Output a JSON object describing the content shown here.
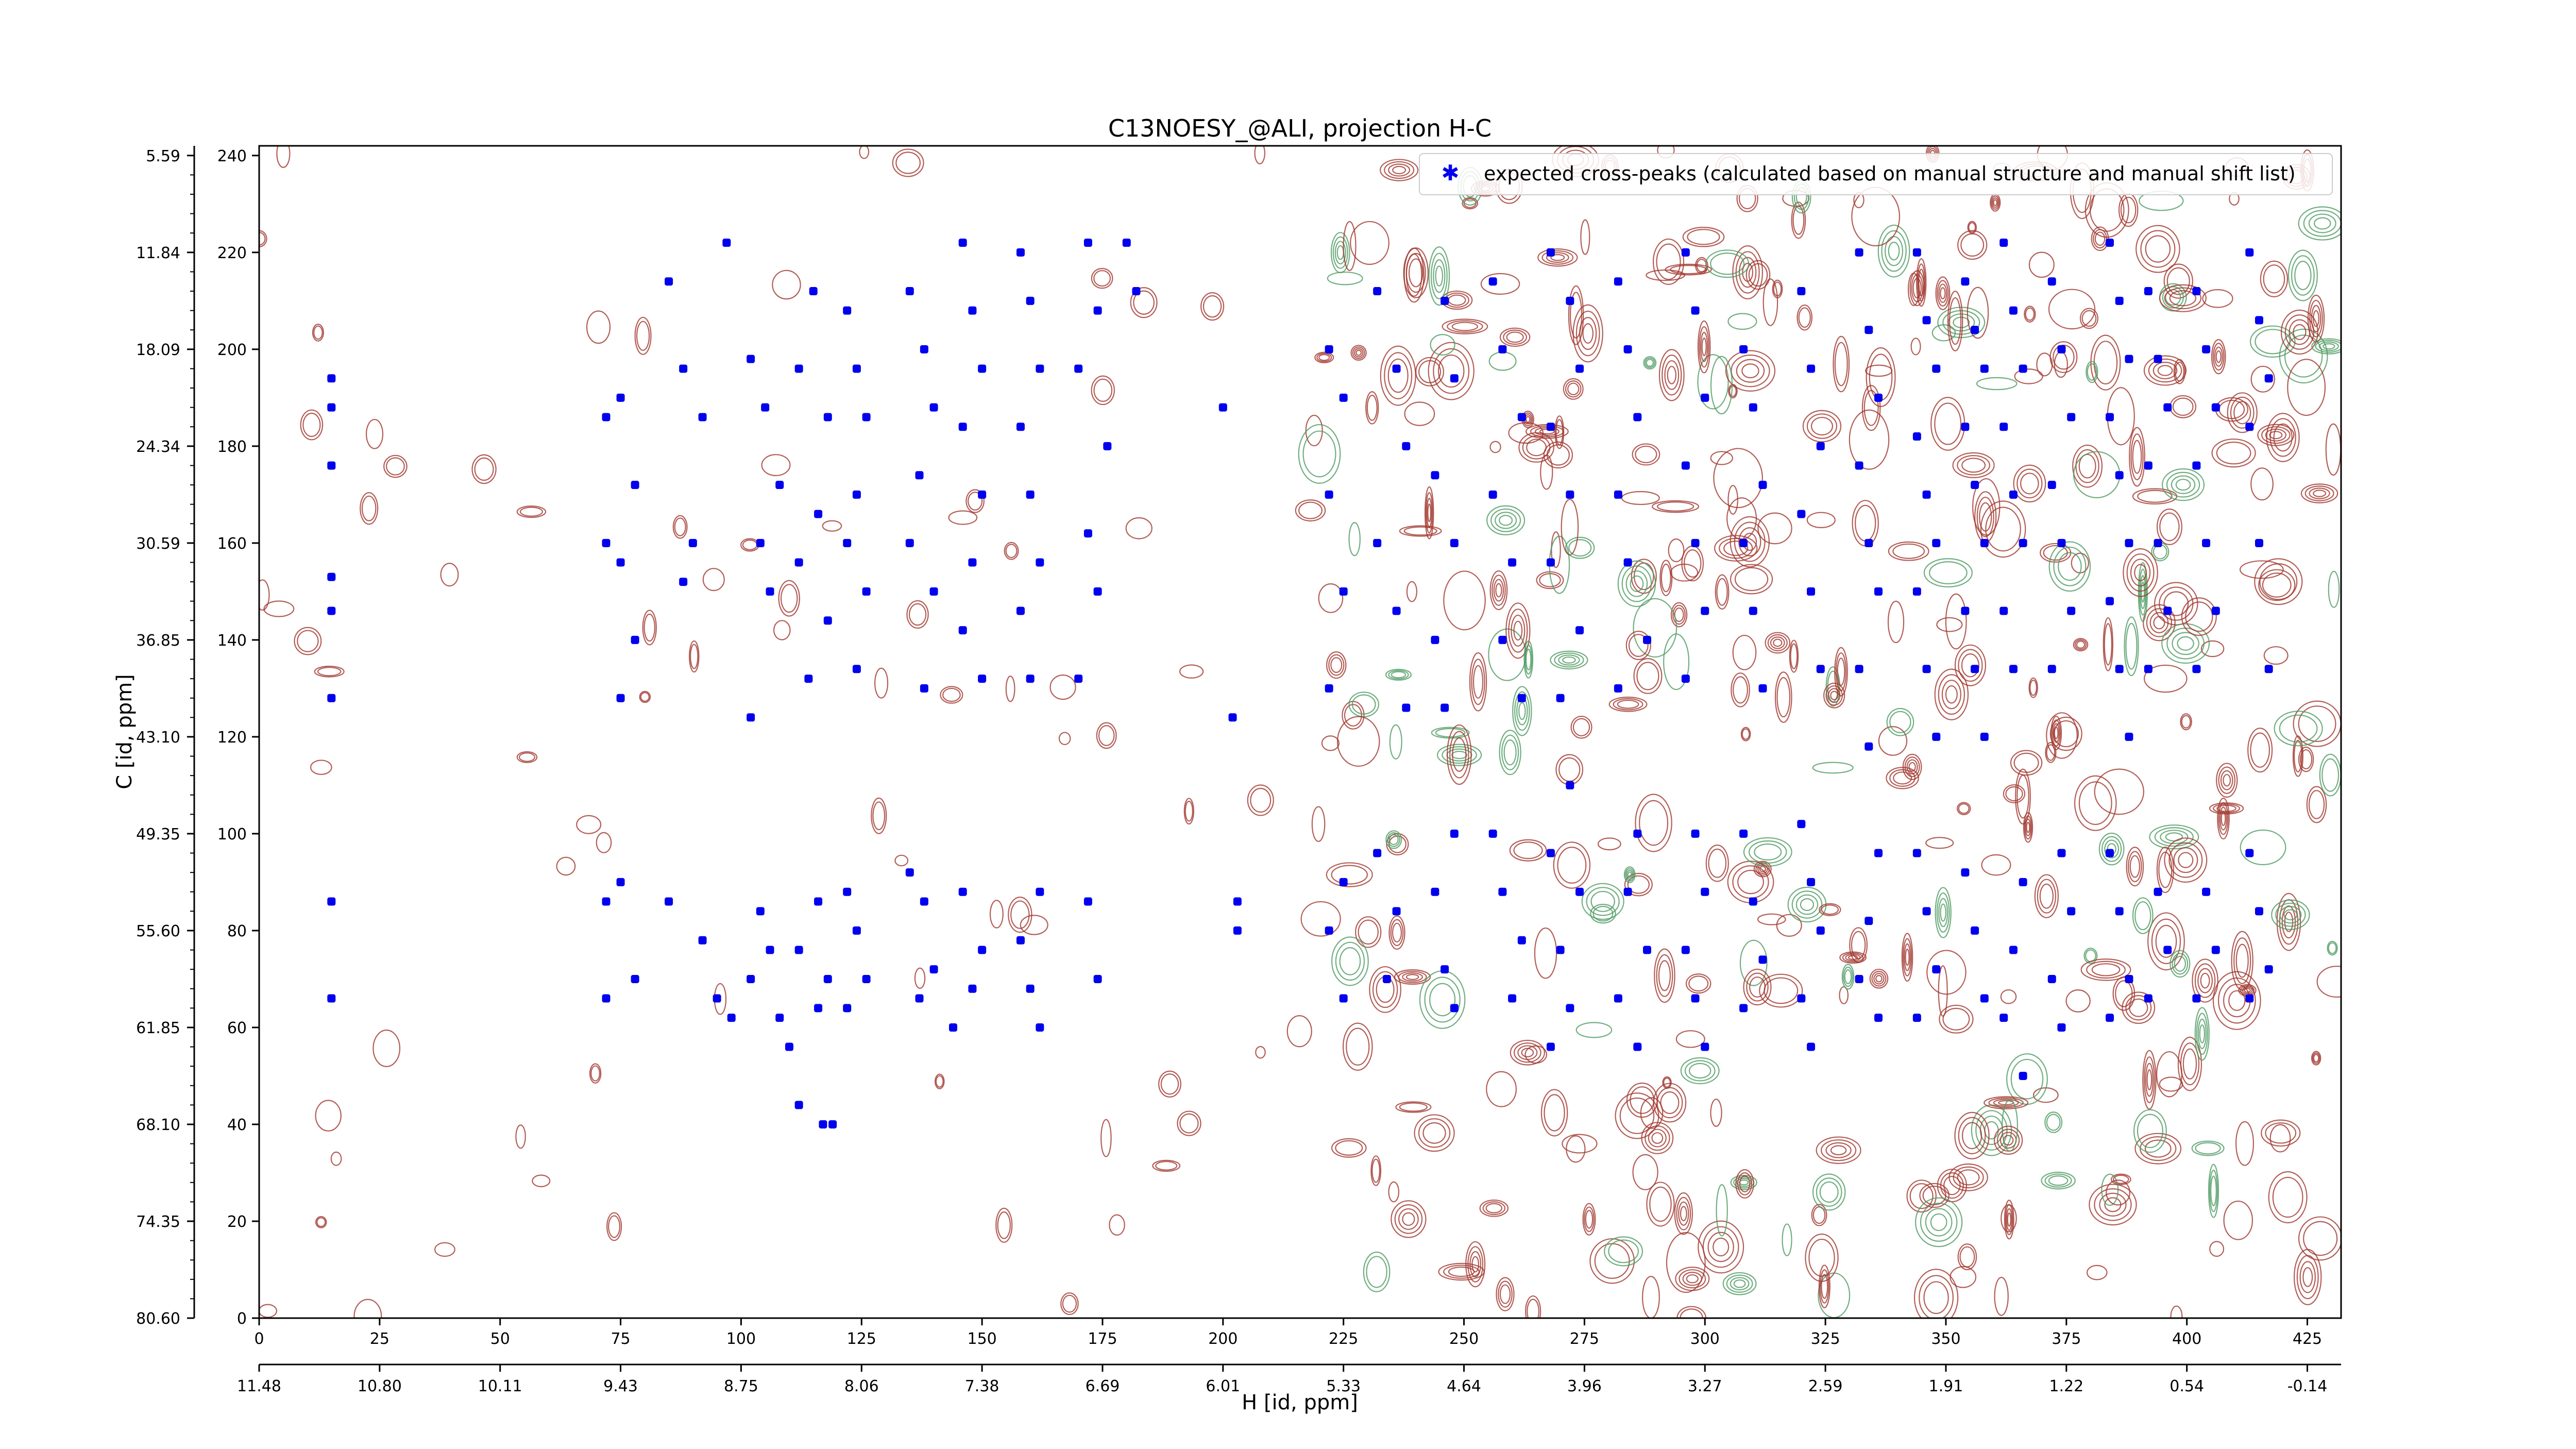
{
  "chart_data": {
    "type": "scatter",
    "title": "C13NOESY_@ALI, projection H-C",
    "xlabel": "H [id, ppm]",
    "ylabel": "C [id, ppm]",
    "xlim": [
      0,
      432
    ],
    "ylim": [
      0,
      242
    ],
    "x_ticks": [
      0,
      25,
      50,
      75,
      100,
      125,
      150,
      175,
      200,
      225,
      250,
      275,
      300,
      325,
      350,
      375,
      400,
      425
    ],
    "x_ppm_ticks": [
      "11.48",
      "10.80",
      "10.11",
      "9.43",
      "8.75",
      "8.06",
      "7.38",
      "6.69",
      "6.01",
      "5.33",
      "4.64",
      "3.96",
      "3.27",
      "2.59",
      "1.91",
      "1.22",
      "0.54",
      "-0.14"
    ],
    "y_ticks": [
      0,
      20,
      40,
      60,
      80,
      100,
      120,
      140,
      160,
      180,
      200,
      220,
      240
    ],
    "y_ppm_ticks": [
      "80.60",
      "74.35",
      "68.10",
      "61.85",
      "55.60",
      "49.35",
      "43.10",
      "36.85",
      "30.59",
      "24.34",
      "18.09",
      "11.84",
      "5.59"
    ],
    "legend": {
      "position": "top-right",
      "entries": [
        "expected cross-peaks (calculated based on manual structure and manual shift list)"
      ]
    },
    "colors": {
      "peaks": "#0000ee",
      "contour_positive": "#a0362d",
      "contour_negative": "#4e9a61"
    },
    "series": [
      {
        "name": "expected cross-peaks (calculated based on manual structure and manual shift list)",
        "points": [
          [
            15,
            194
          ],
          [
            15,
            188
          ],
          [
            15,
            176
          ],
          [
            15,
            153
          ],
          [
            15,
            146
          ],
          [
            15,
            128
          ],
          [
            15,
            86
          ],
          [
            15,
            66
          ],
          [
            72,
            186
          ],
          [
            75,
            190
          ],
          [
            78,
            172
          ],
          [
            72,
            160
          ],
          [
            75,
            156
          ],
          [
            78,
            140
          ],
          [
            75,
            128
          ],
          [
            72,
            86
          ],
          [
            75,
            90
          ],
          [
            78,
            70
          ],
          [
            72,
            66
          ],
          [
            85,
            214
          ],
          [
            88,
            196
          ],
          [
            92,
            186
          ],
          [
            90,
            160
          ],
          [
            88,
            152
          ],
          [
            85,
            86
          ],
          [
            92,
            78
          ],
          [
            95,
            66
          ],
          [
            98,
            62
          ],
          [
            97,
            222
          ],
          [
            102,
            198
          ],
          [
            105,
            188
          ],
          [
            108,
            172
          ],
          [
            104,
            160
          ],
          [
            106,
            150
          ],
          [
            102,
            124
          ],
          [
            104,
            84
          ],
          [
            106,
            76
          ],
          [
            102,
            70
          ],
          [
            108,
            62
          ],
          [
            115,
            212
          ],
          [
            112,
            196
          ],
          [
            118,
            186
          ],
          [
            116,
            166
          ],
          [
            112,
            156
          ],
          [
            118,
            144
          ],
          [
            114,
            132
          ],
          [
            116,
            86
          ],
          [
            112,
            76
          ],
          [
            118,
            70
          ],
          [
            116,
            64
          ],
          [
            110,
            56
          ],
          [
            112,
            44
          ],
          [
            122,
            208
          ],
          [
            124,
            196
          ],
          [
            126,
            186
          ],
          [
            124,
            170
          ],
          [
            122,
            160
          ],
          [
            126,
            150
          ],
          [
            124,
            134
          ],
          [
            122,
            88
          ],
          [
            124,
            80
          ],
          [
            126,
            70
          ],
          [
            122,
            64
          ],
          [
            117,
            40
          ],
          [
            119,
            40
          ],
          [
            135,
            212
          ],
          [
            138,
            200
          ],
          [
            140,
            188
          ],
          [
            137,
            174
          ],
          [
            135,
            160
          ],
          [
            140,
            150
          ],
          [
            138,
            130
          ],
          [
            135,
            92
          ],
          [
            138,
            86
          ],
          [
            140,
            72
          ],
          [
            137,
            66
          ],
          [
            146,
            222
          ],
          [
            148,
            208
          ],
          [
            150,
            196
          ],
          [
            146,
            184
          ],
          [
            150,
            170
          ],
          [
            148,
            156
          ],
          [
            146,
            142
          ],
          [
            150,
            132
          ],
          [
            146,
            88
          ],
          [
            150,
            76
          ],
          [
            148,
            68
          ],
          [
            144,
            60
          ],
          [
            158,
            220
          ],
          [
            160,
            210
          ],
          [
            162,
            196
          ],
          [
            158,
            184
          ],
          [
            160,
            170
          ],
          [
            162,
            156
          ],
          [
            158,
            146
          ],
          [
            160,
            132
          ],
          [
            162,
            88
          ],
          [
            158,
            78
          ],
          [
            160,
            68
          ],
          [
            162,
            60
          ],
          [
            172,
            222
          ],
          [
            174,
            208
          ],
          [
            170,
            196
          ],
          [
            176,
            180
          ],
          [
            172,
            162
          ],
          [
            174,
            150
          ],
          [
            170,
            132
          ],
          [
            172,
            86
          ],
          [
            174,
            70
          ],
          [
            180,
            222
          ],
          [
            182,
            212
          ],
          [
            203,
            86
          ],
          [
            203,
            80
          ],
          [
            200,
            188
          ],
          [
            202,
            124
          ],
          [
            222,
            200
          ],
          [
            225,
            190
          ],
          [
            222,
            170
          ],
          [
            225,
            150
          ],
          [
            222,
            130
          ],
          [
            225,
            90
          ],
          [
            222,
            80
          ],
          [
            225,
            66
          ],
          [
            232,
            212
          ],
          [
            236,
            196
          ],
          [
            238,
            180
          ],
          [
            232,
            160
          ],
          [
            236,
            146
          ],
          [
            238,
            126
          ],
          [
            232,
            96
          ],
          [
            236,
            84
          ],
          [
            234,
            70
          ],
          [
            246,
            210
          ],
          [
            248,
            194
          ],
          [
            244,
            174
          ],
          [
            248,
            160
          ],
          [
            244,
            140
          ],
          [
            246,
            126
          ],
          [
            248,
            100
          ],
          [
            244,
            88
          ],
          [
            246,
            72
          ],
          [
            248,
            64
          ],
          [
            256,
            214
          ],
          [
            258,
            200
          ],
          [
            262,
            186
          ],
          [
            256,
            170
          ],
          [
            260,
            156
          ],
          [
            258,
            140
          ],
          [
            262,
            128
          ],
          [
            256,
            100
          ],
          [
            258,
            88
          ],
          [
            262,
            78
          ],
          [
            260,
            66
          ],
          [
            268,
            220
          ],
          [
            272,
            210
          ],
          [
            274,
            196
          ],
          [
            268,
            184
          ],
          [
            272,
            170
          ],
          [
            268,
            156
          ],
          [
            274,
            142
          ],
          [
            270,
            128
          ],
          [
            272,
            110
          ],
          [
            268,
            96
          ],
          [
            274,
            88
          ],
          [
            270,
            76
          ],
          [
            272,
            64
          ],
          [
            268,
            56
          ],
          [
            282,
            214
          ],
          [
            284,
            200
          ],
          [
            286,
            186
          ],
          [
            282,
            170
          ],
          [
            284,
            156
          ],
          [
            288,
            140
          ],
          [
            282,
            130
          ],
          [
            286,
            100
          ],
          [
            284,
            88
          ],
          [
            288,
            76
          ],
          [
            282,
            66
          ],
          [
            286,
            56
          ],
          [
            296,
            220
          ],
          [
            298,
            208
          ],
          [
            300,
            190
          ],
          [
            296,
            176
          ],
          [
            298,
            160
          ],
          [
            300,
            146
          ],
          [
            296,
            132
          ],
          [
            298,
            100
          ],
          [
            300,
            88
          ],
          [
            296,
            76
          ],
          [
            298,
            66
          ],
          [
            300,
            56
          ],
          [
            308,
            200
          ],
          [
            310,
            188
          ],
          [
            312,
            172
          ],
          [
            308,
            160
          ],
          [
            310,
            146
          ],
          [
            312,
            130
          ],
          [
            308,
            100
          ],
          [
            310,
            86
          ],
          [
            312,
            74
          ],
          [
            308,
            64
          ],
          [
            320,
            212
          ],
          [
            322,
            196
          ],
          [
            324,
            180
          ],
          [
            320,
            166
          ],
          [
            322,
            150
          ],
          [
            324,
            134
          ],
          [
            320,
            102
          ],
          [
            322,
            90
          ],
          [
            324,
            80
          ],
          [
            320,
            66
          ],
          [
            322,
            56
          ],
          [
            332,
            220
          ],
          [
            334,
            204
          ],
          [
            336,
            190
          ],
          [
            332,
            176
          ],
          [
            334,
            160
          ],
          [
            336,
            150
          ],
          [
            332,
            134
          ],
          [
            334,
            118
          ],
          [
            336,
            96
          ],
          [
            334,
            82
          ],
          [
            332,
            70
          ],
          [
            336,
            62
          ],
          [
            344,
            220
          ],
          [
            346,
            206
          ],
          [
            348,
            196
          ],
          [
            344,
            182
          ],
          [
            346,
            170
          ],
          [
            348,
            160
          ],
          [
            344,
            150
          ],
          [
            346,
            134
          ],
          [
            348,
            120
          ],
          [
            344,
            96
          ],
          [
            346,
            84
          ],
          [
            348,
            72
          ],
          [
            344,
            62
          ],
          [
            354,
            214
          ],
          [
            356,
            204
          ],
          [
            358,
            196
          ],
          [
            354,
            184
          ],
          [
            356,
            172
          ],
          [
            358,
            160
          ],
          [
            354,
            146
          ],
          [
            356,
            134
          ],
          [
            358,
            120
          ],
          [
            354,
            92
          ],
          [
            356,
            80
          ],
          [
            358,
            66
          ],
          [
            362,
            222
          ],
          [
            364,
            208
          ],
          [
            366,
            196
          ],
          [
            362,
            184
          ],
          [
            364,
            170
          ],
          [
            366,
            160
          ],
          [
            362,
            146
          ],
          [
            364,
            134
          ],
          [
            366,
            90
          ],
          [
            364,
            76
          ],
          [
            362,
            62
          ],
          [
            366,
            50
          ],
          [
            372,
            214
          ],
          [
            374,
            200
          ],
          [
            376,
            186
          ],
          [
            372,
            172
          ],
          [
            374,
            160
          ],
          [
            376,
            146
          ],
          [
            372,
            134
          ],
          [
            374,
            96
          ],
          [
            376,
            84
          ],
          [
            372,
            70
          ],
          [
            374,
            60
          ],
          [
            384,
            222
          ],
          [
            386,
            210
          ],
          [
            388,
            198
          ],
          [
            384,
            186
          ],
          [
            386,
            174
          ],
          [
            388,
            160
          ],
          [
            384,
            148
          ],
          [
            386,
            134
          ],
          [
            388,
            120
          ],
          [
            384,
            96
          ],
          [
            386,
            84
          ],
          [
            388,
            70
          ],
          [
            384,
            62
          ],
          [
            392,
            212
          ],
          [
            394,
            198
          ],
          [
            396,
            188
          ],
          [
            392,
            176
          ],
          [
            394,
            160
          ],
          [
            396,
            146
          ],
          [
            392,
            134
          ],
          [
            394,
            88
          ],
          [
            396,
            76
          ],
          [
            392,
            66
          ],
          [
            402,
            212
          ],
          [
            404,
            200
          ],
          [
            406,
            188
          ],
          [
            402,
            176
          ],
          [
            404,
            160
          ],
          [
            406,
            146
          ],
          [
            402,
            134
          ],
          [
            404,
            88
          ],
          [
            406,
            76
          ],
          [
            402,
            66
          ],
          [
            413,
            220
          ],
          [
            415,
            206
          ],
          [
            417,
            194
          ],
          [
            413,
            184
          ],
          [
            415,
            160
          ],
          [
            417,
            134
          ],
          [
            413,
            96
          ],
          [
            415,
            84
          ],
          [
            417,
            72
          ],
          [
            413,
            66
          ]
        ]
      }
    ]
  }
}
